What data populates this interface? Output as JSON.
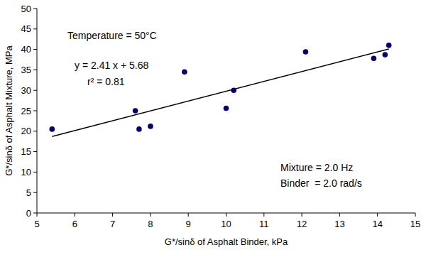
{
  "chart_data": {
    "type": "scatter",
    "x_label": "G*/sinδ of Asphalt Binder, kPa",
    "y_label": "G*/sinδ of Asphalt Mixture, MPa",
    "x": [
      5.4,
      7.6,
      7.7,
      8.0,
      8.9,
      10.0,
      10.2,
      12.1,
      13.9,
      14.2,
      14.3
    ],
    "series": [
      {
        "values": [
          20.5,
          25.0,
          20.5,
          21.2,
          34.5,
          25.6,
          30.0,
          39.4,
          37.8,
          38.7,
          41.0
        ],
        "color": "#00007f",
        "marker": "circle"
      }
    ],
    "trend_line": {
      "x": [
        5.4,
        14.3
      ],
      "values": [
        18.7,
        40.1
      ],
      "color": "#000000",
      "line_style": "solid"
    },
    "annotations": [
      {
        "text": "Temperature = 50°C"
      },
      {
        "text": "y = 2.41 x + 5.68"
      },
      {
        "text": "r² = 0.81"
      },
      {
        "text": "Mixture = 2.0 Hz"
      },
      {
        "text": "Binder  = 2.0 rad/s"
      }
    ],
    "xlim": [
      5,
      15
    ],
    "xticks": [
      5,
      6,
      7,
      8,
      9,
      10,
      11,
      12,
      13,
      14,
      15
    ],
    "ylim": [
      0,
      50
    ],
    "yticks": [
      0,
      5,
      10,
      15,
      20,
      25,
      30,
      35,
      40,
      45,
      50
    ],
    "grid": false
  }
}
